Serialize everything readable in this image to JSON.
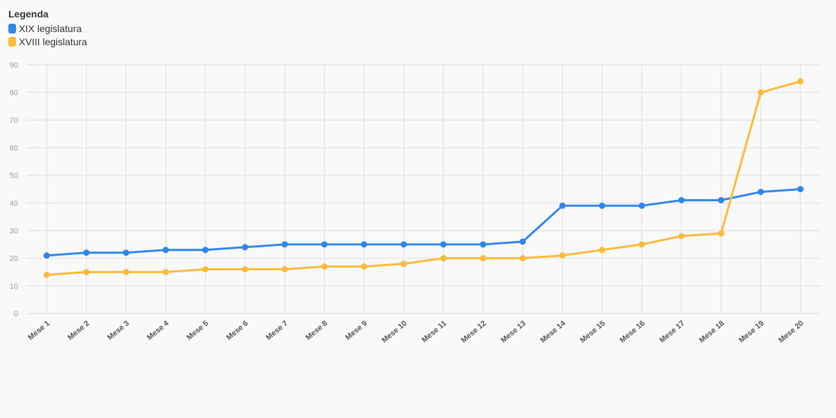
{
  "legend": {
    "title": "Legenda"
  },
  "chart_data": {
    "type": "line",
    "title": "",
    "xlabel": "",
    "ylabel": "",
    "ylim": [
      0,
      90
    ],
    "yticks": [
      0,
      10,
      20,
      30,
      40,
      50,
      60,
      70,
      80,
      90
    ],
    "grid": true,
    "legend_position": "top-left",
    "categories": [
      "Mese 1",
      "Mese 2",
      "Mese 3",
      "Mese 4",
      "Mese 5",
      "Mese 6",
      "Mese 7",
      "Mese 8",
      "Mese 9",
      "Mese 10",
      "Mese 11",
      "Mese 12",
      "Mese 13",
      "Mese 14",
      "Mese 15",
      "Mese 16",
      "Mese 17",
      "Mese 18",
      "Mese 19",
      "Mese 20"
    ],
    "series": [
      {
        "name": "XIX legislatura",
        "color": "#2f86eb",
        "values": [
          21,
          22,
          22,
          23,
          23,
          24,
          25,
          25,
          25,
          25,
          25,
          25,
          26,
          39,
          39,
          39,
          41,
          41,
          44,
          45
        ]
      },
      {
        "name": "XVIII legislatura",
        "color": "#fdb93b",
        "values": [
          14,
          15,
          15,
          15,
          16,
          16,
          16,
          17,
          17,
          18,
          20,
          20,
          20,
          21,
          23,
          25,
          28,
          29,
          80,
          84
        ]
      }
    ]
  }
}
